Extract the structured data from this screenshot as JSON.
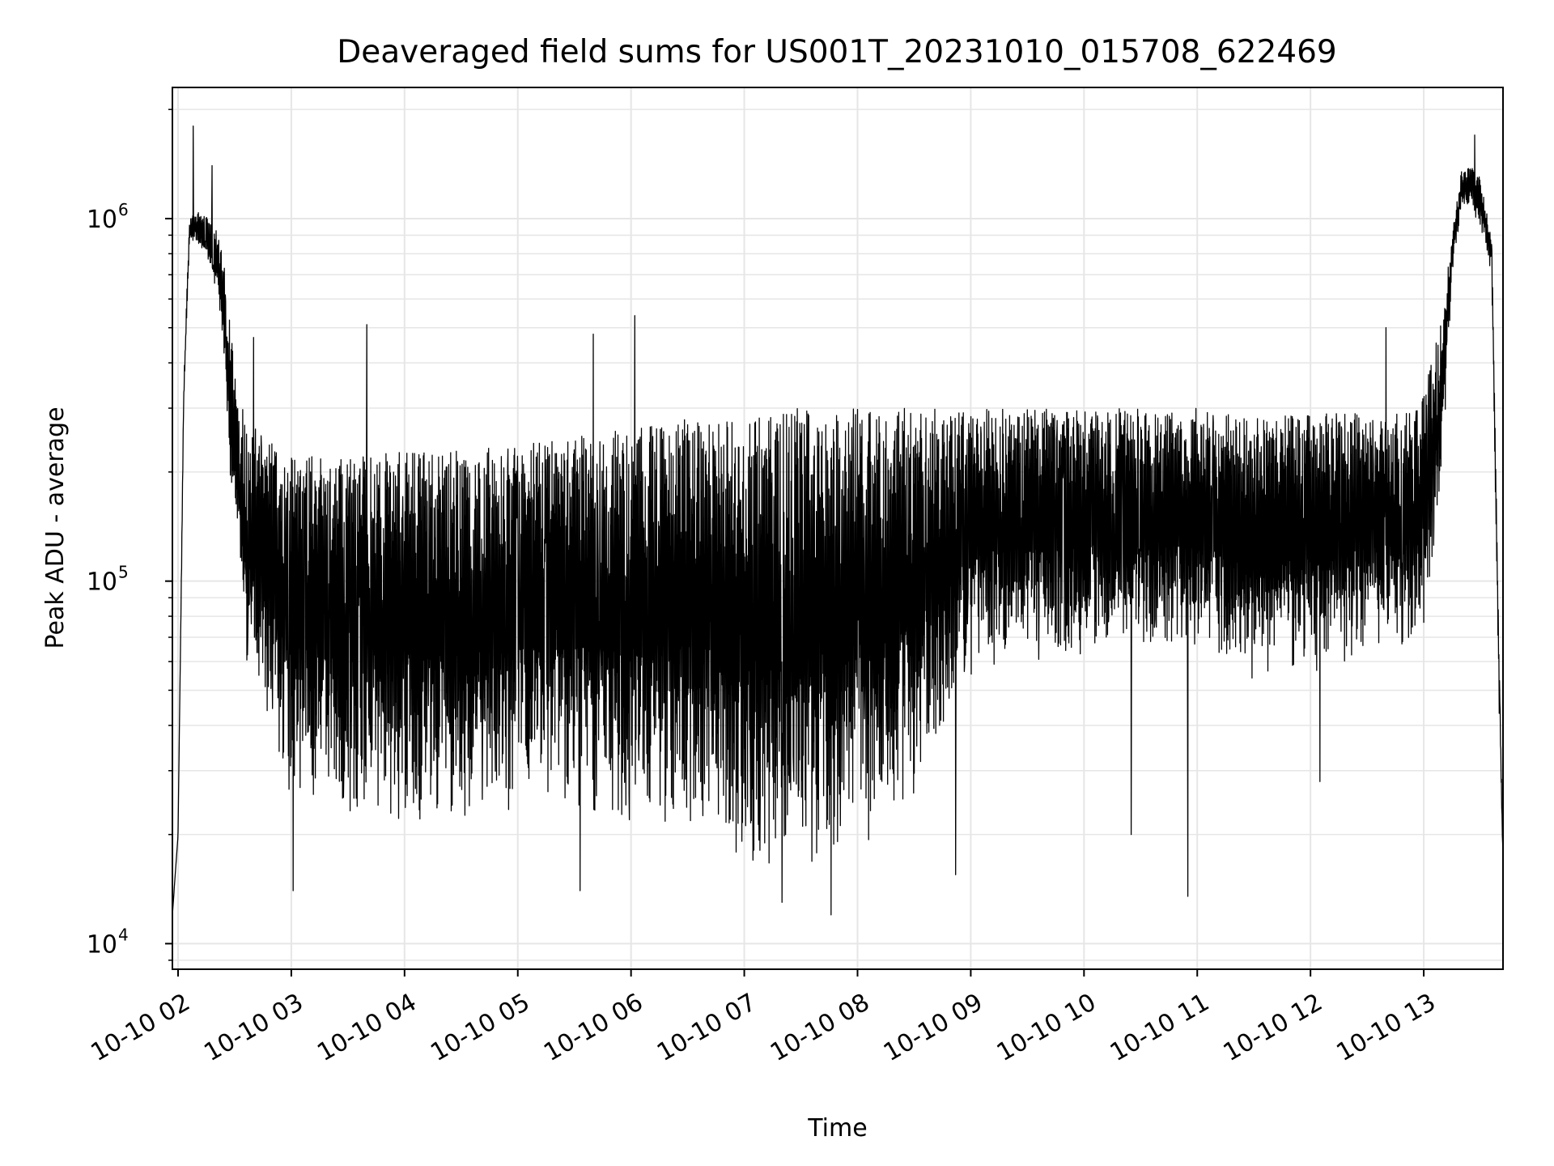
{
  "chart_data": {
    "type": "line",
    "title": "Deaveraged field sums for US001T_20231010_015708_622469",
    "xlabel": "Time",
    "ylabel": "Peak ADU - average",
    "y_scale": "log",
    "ylim": [
      8500,
      2300000
    ],
    "xlim": [
      "2023-10-10 01:57",
      "2023-10-10 13:42"
    ],
    "grid": true,
    "line_color": "#000000",
    "grid_color": "#e6e6e6",
    "x_ticks": [
      {
        "value": "2023-10-10 02:00",
        "label": "10-10 02"
      },
      {
        "value": "2023-10-10 03:00",
        "label": "10-10 03"
      },
      {
        "value": "2023-10-10 04:00",
        "label": "10-10 04"
      },
      {
        "value": "2023-10-10 05:00",
        "label": "10-10 05"
      },
      {
        "value": "2023-10-10 06:00",
        "label": "10-10 06"
      },
      {
        "value": "2023-10-10 07:00",
        "label": "10-10 07"
      },
      {
        "value": "2023-10-10 08:00",
        "label": "10-10 08"
      },
      {
        "value": "2023-10-10 09:00",
        "label": "10-10 09"
      },
      {
        "value": "2023-10-10 10:00",
        "label": "10-10 10"
      },
      {
        "value": "2023-10-10 11:00",
        "label": "10-10 11"
      },
      {
        "value": "2023-10-10 12:00",
        "label": "10-10 12"
      },
      {
        "value": "2023-10-10 13:00",
        "label": "10-10 13"
      }
    ],
    "y_ticks": [
      {
        "value": 10000,
        "base": "10",
        "exp": "4"
      },
      {
        "value": 100000,
        "base": "10",
        "exp": "5"
      },
      {
        "value": 1000000,
        "base": "10",
        "exp": "6"
      }
    ],
    "series": [
      {
        "envelope": {
          "time": [
            "2023-10-10 01:57",
            "2023-10-10 02:00",
            "2023-10-10 02:03",
            "2023-10-10 02:06",
            "2023-10-10 02:10",
            "2023-10-10 02:16",
            "2023-10-10 02:22",
            "2023-10-10 02:26",
            "2023-10-10 02:30",
            "2023-10-10 02:36",
            "2023-10-10 02:45",
            "2023-10-10 03:00",
            "2023-10-10 03:30",
            "2023-10-10 04:00",
            "2023-10-10 04:30",
            "2023-10-10 05:00",
            "2023-10-10 05:30",
            "2023-10-10 06:00",
            "2023-10-10 06:30",
            "2023-10-10 07:00",
            "2023-10-10 07:30",
            "2023-10-10 07:50",
            "2023-10-10 08:00",
            "2023-10-10 08:30",
            "2023-10-10 09:00",
            "2023-10-10 09:30",
            "2023-10-10 10:00",
            "2023-10-10 10:30",
            "2023-10-10 11:00",
            "2023-10-10 11:30",
            "2023-10-10 12:00",
            "2023-10-10 12:30",
            "2023-10-10 12:50",
            "2023-10-10 13:00",
            "2023-10-10 13:10",
            "2023-10-10 13:15",
            "2023-10-10 13:20",
            "2023-10-10 13:25",
            "2023-10-10 13:30",
            "2023-10-10 13:36",
            "2023-10-10 13:40",
            "2023-10-10 13:42"
          ],
          "upper": [
            12000,
            20000,
            350000,
            1000000,
            1050000,
            1000000,
            900000,
            650000,
            380000,
            280000,
            250000,
            230000,
            220000,
            230000,
            230000,
            240000,
            250000,
            270000,
            280000,
            290000,
            300000,
            300000,
            300000,
            300000,
            300000,
            300000,
            300000,
            300000,
            300000,
            280000,
            290000,
            290000,
            290000,
            330000,
            550000,
            900000,
            1350000,
            1400000,
            1300000,
            900000,
            60000,
            17000
          ],
          "lower": [
            12000,
            20000,
            300000,
            850000,
            850000,
            750000,
            550000,
            250000,
            130000,
            60000,
            40000,
            25000,
            22000,
            22000,
            22000,
            23000,
            23000,
            21000,
            21000,
            17000,
            16000,
            16000,
            18000,
            25000,
            55000,
            60000,
            62000,
            62000,
            65000,
            52000,
            55000,
            62000,
            65000,
            70000,
            200000,
            700000,
            1050000,
            1050000,
            950000,
            700000,
            40000,
            17000
          ]
        },
        "peaks": [
          {
            "time": "2023-10-10 02:08",
            "value": 1800000
          },
          {
            "time": "2023-10-10 02:18",
            "value": 1400000
          },
          {
            "time": "2023-10-10 02:40",
            "value": 470000
          },
          {
            "time": "2023-10-10 03:40",
            "value": 510000
          },
          {
            "time": "2023-10-10 05:40",
            "value": 480000
          },
          {
            "time": "2023-10-10 06:02",
            "value": 540000
          },
          {
            "time": "2023-10-10 12:40",
            "value": 500000
          },
          {
            "time": "2023-10-10 13:27",
            "value": 1700000
          }
        ],
        "troughs": [
          {
            "time": "2023-10-10 07:46",
            "value": 12000
          },
          {
            "time": "2023-10-10 10:55",
            "value": 13500
          },
          {
            "time": "2023-10-10 05:33",
            "value": 14000
          },
          {
            "time": "2023-10-10 03:01",
            "value": 14000
          },
          {
            "time": "2023-10-10 07:20",
            "value": 13000
          },
          {
            "time": "2023-10-10 08:52",
            "value": 15500
          },
          {
            "time": "2023-10-10 10:25",
            "value": 20000
          },
          {
            "time": "2023-10-10 12:05",
            "value": 28000
          }
        ]
      }
    ]
  }
}
